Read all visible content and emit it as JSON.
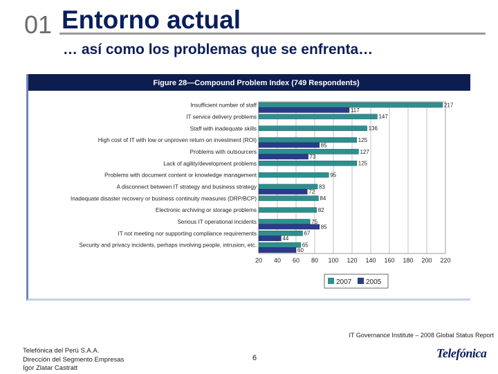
{
  "header": {
    "section_number": "01",
    "title": "Entorno actual",
    "subtitle": "… así como los problemas que se enfrenta…"
  },
  "chart_data": {
    "type": "bar",
    "title": "Figure 28—Compound Problem Index (749 Respondents)",
    "categories": [
      "Insufficient number of staff",
      "IT service delivery problems",
      "Staff with inadequate skills",
      "High cost of IT with low or unproven return on investment (ROI)",
      "Problems with outsourcers",
      "Lack of agility/development problems",
      "Problems with document content or knowledge management",
      "A disconnect between IT strategy and business strategy",
      "Inadequate disaster recovery or business continuity measures (DRP/BCP)",
      "Electronic archiving or storage problems",
      "Serious IT operational incidents",
      "IT not meeting nor supporting compliance requirements",
      "Security and privacy incidents, perhaps involving people, intrusion, etc."
    ],
    "series": [
      {
        "name": "2007",
        "color": "#2f8f8f",
        "values": [
          217,
          147,
          136,
          125,
          127,
          125,
          95,
          83,
          84,
          82,
          75,
          67,
          65
        ]
      },
      {
        "name": "2005",
        "color": "#2b3b8a",
        "values": [
          117,
          null,
          null,
          85,
          73,
          null,
          null,
          72,
          null,
          null,
          85,
          44,
          60
        ]
      }
    ],
    "value_labels": {
      "2007": [
        "217",
        "147",
        "136",
        "125",
        "127",
        "125",
        "95",
        "83",
        "84",
        "82",
        "75",
        "67",
        "65"
      ],
      "2005": [
        "117",
        "",
        "",
        "85",
        "73",
        "",
        "",
        "72",
        "",
        "",
        "85",
        "44",
        "60"
      ]
    },
    "xlim": [
      20,
      220
    ],
    "xticks": [
      "20",
      "40",
      "60",
      "80",
      "100",
      "120",
      "140",
      "160",
      "180",
      "200",
      "220"
    ],
    "grid": true,
    "legend_position": "bottom-right"
  },
  "source": "IT Governance Institute – 2008 Global Status Report",
  "footer": {
    "line1": "Telefónica del Perú S.A.A.",
    "line2": "Dirección del Segmento Empresas",
    "line3": "Igor Zlatar Castratt",
    "page": "6"
  },
  "logo_text": "Telefónica"
}
